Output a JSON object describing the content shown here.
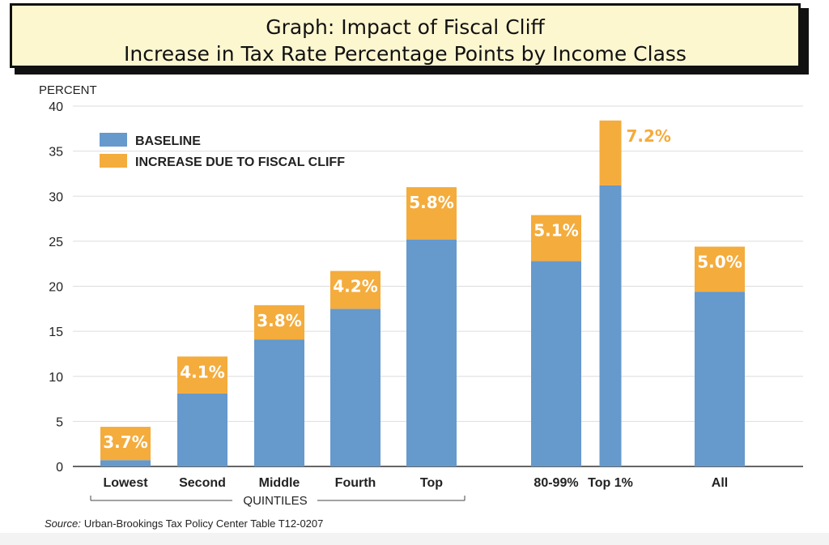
{
  "title": {
    "line1": "Graph:  Impact of Fiscal Cliff",
    "line2": "Increase in Tax Rate Percentage Points by Income Class"
  },
  "source": {
    "prefix": "Source:",
    "text": "Urban-Brookings Tax Policy Center Table T12-0207"
  },
  "colors": {
    "baseline": "#6699cc",
    "increase": "#f4ac3c",
    "grid": "#dddddd",
    "axis": "#333333"
  },
  "chart_data": {
    "type": "bar",
    "stacked": true,
    "title": "Graph:  Impact of Fiscal Cliff — Increase in Tax Rate Percentage Points by Income Class",
    "ylabel": "PERCENT",
    "xlabel": "",
    "ylim": [
      0,
      40
    ],
    "yticks": [
      0,
      5,
      10,
      15,
      20,
      25,
      30,
      35,
      40
    ],
    "legend_position": "top-left",
    "group_label": "QUINTILES",
    "categories": [
      "Lowest",
      "Second",
      "Middle",
      "Fourth",
      "Top",
      "80-99%",
      "Top 1%",
      "All"
    ],
    "series": [
      {
        "name": "BASELINE",
        "values": [
          0.7,
          8.1,
          14.1,
          17.5,
          25.2,
          22.8,
          31.2,
          19.4
        ]
      },
      {
        "name": "INCREASE DUE TO FISCAL CLIFF",
        "values": [
          3.7,
          4.1,
          3.8,
          4.2,
          5.8,
          5.1,
          7.2,
          5.0
        ]
      }
    ],
    "data_labels": [
      "3.7%",
      "4.1%",
      "3.8%",
      "4.2%",
      "5.8%",
      "5.1%",
      "7.2%",
      "5.0%"
    ]
  }
}
